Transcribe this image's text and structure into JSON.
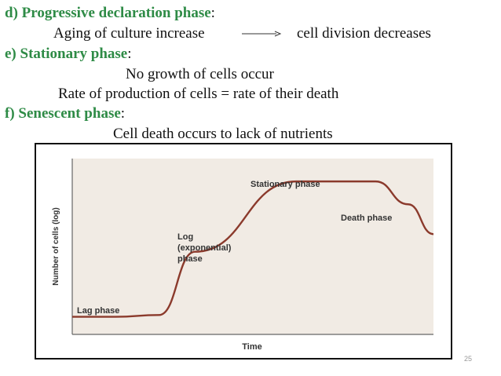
{
  "slide": {
    "d": {
      "marker": "d)",
      "title": "Progressive declaration phase",
      "colon": ":",
      "left": "Aging of culture increase",
      "right": "cell division decreases"
    },
    "e": {
      "marker": "e)",
      "title": "Stationary phase",
      "colon": ":",
      "line1": "No growth of cells occur",
      "line2": "Rate of production of cells = rate of  their death"
    },
    "f": {
      "marker": "f)",
      "title": "Senescent phase",
      "colon": ":",
      "line1": "Cell death occurs to lack of nutrients"
    },
    "page_number": "25"
  },
  "chart_data": {
    "type": "line",
    "title": "",
    "xlabel": "Time",
    "ylabel": "Number of cells (log)",
    "annotations": [
      "Lag phase",
      "Log (exponential) phase",
      "Stationary phase",
      "Death phase"
    ],
    "annotation_lines": {
      "log": [
        "Log",
        "(exponential)",
        "phase"
      ]
    },
    "grid": false,
    "series": [
      {
        "values_description": "growth curve",
        "x": [
          0,
          12,
          24,
          34,
          62,
          76,
          84,
          93,
          100
        ],
        "y": [
          10,
          10,
          11,
          47,
          87,
          87,
          87,
          74,
          57
        ]
      }
    ],
    "xlim": [
      0,
      100
    ],
    "ylim": [
      0,
      100
    ]
  }
}
